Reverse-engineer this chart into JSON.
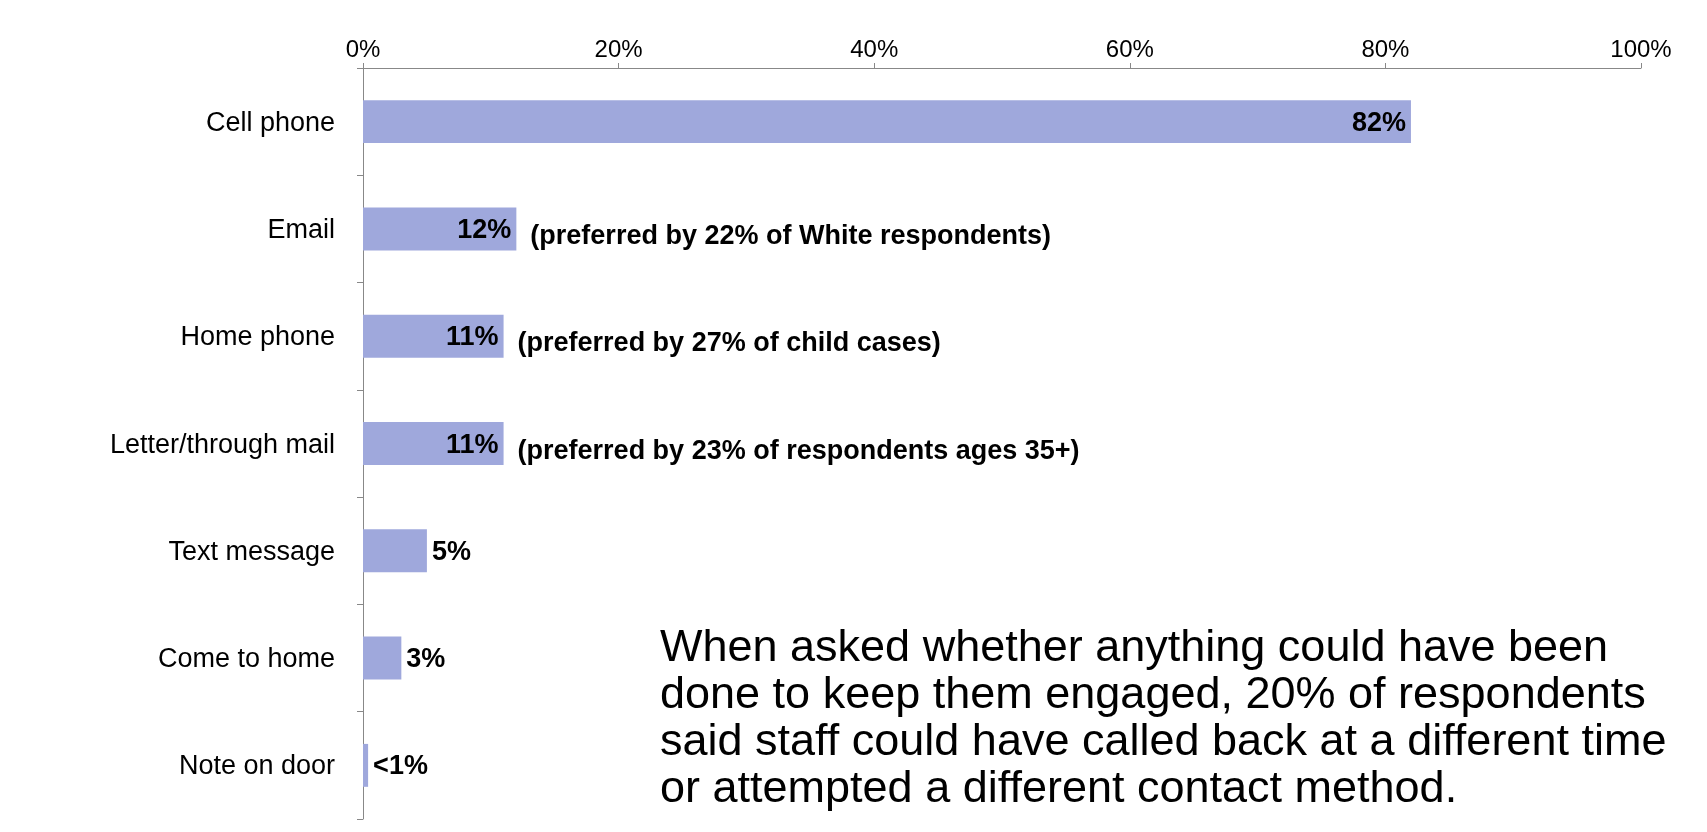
{
  "chart_data": {
    "type": "bar",
    "orientation": "horizontal",
    "categories": [
      "Cell phone",
      "Email",
      "Home phone",
      "Letter/through mail",
      "Text message",
      "Come to home",
      "Note on door"
    ],
    "values": [
      82,
      12,
      11,
      11,
      5,
      3,
      0.4
    ],
    "value_labels": [
      "82%",
      "12%",
      "11%",
      "11%",
      "5%",
      "3%",
      "<1%"
    ],
    "color": "#9fa8dc",
    "xlim": [
      0,
      100
    ],
    "xticks": [
      {
        "value": 0,
        "label": "0%"
      },
      {
        "value": 20,
        "label": "20%"
      },
      {
        "value": 40,
        "label": "40%"
      },
      {
        "value": 60,
        "label": "60%"
      },
      {
        "value": 80,
        "label": "80%"
      },
      {
        "value": 100,
        "label": "100%"
      }
    ],
    "grid": false,
    "annotations": [
      "(preferred by 22% of White respondents)",
      "(preferred by 27% of child cases)",
      "(preferred by 23% of respondents ages 35+)",
      "When asked whether anything could have been done to keep them engaged, 20% of respondents said staff could have called back at a different time or attempted a different contact method."
    ]
  }
}
